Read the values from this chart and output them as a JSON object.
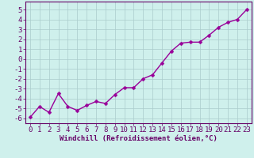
{
  "x": [
    0,
    1,
    2,
    3,
    4,
    5,
    6,
    7,
    8,
    9,
    10,
    11,
    12,
    13,
    14,
    15,
    16,
    17,
    18,
    19,
    20,
    21,
    22,
    23
  ],
  "y": [
    -5.9,
    -4.8,
    -5.4,
    -3.5,
    -4.8,
    -5.2,
    -4.7,
    -4.3,
    -4.5,
    -3.6,
    -2.9,
    -2.9,
    -2.0,
    -1.6,
    -0.4,
    0.8,
    1.6,
    1.7,
    1.7,
    2.4,
    3.2,
    3.7,
    4.0,
    5.0
  ],
  "line_color": "#990099",
  "marker": "D",
  "marker_size": 2.5,
  "bg_color": "#cff0ec",
  "grid_color": "#aacccc",
  "xlabel": "Windchill (Refroidissement éolien,°C)",
  "xlim": [
    -0.5,
    23.5
  ],
  "ylim": [
    -6.5,
    5.8
  ],
  "xticks": [
    0,
    1,
    2,
    3,
    4,
    5,
    6,
    7,
    8,
    9,
    10,
    11,
    12,
    13,
    14,
    15,
    16,
    17,
    18,
    19,
    20,
    21,
    22,
    23
  ],
  "yticks": [
    -6,
    -5,
    -4,
    -3,
    -2,
    -1,
    0,
    1,
    2,
    3,
    4,
    5
  ],
  "tick_label_color": "#660066",
  "xlabel_color": "#660066",
  "axis_color": "#660066",
  "line_width": 1.0,
  "xlabel_fontsize": 6.5,
  "tick_fontsize": 6.5
}
